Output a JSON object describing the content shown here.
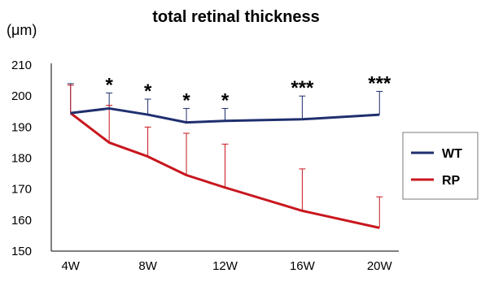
{
  "chart_data": {
    "type": "line",
    "title": "total retinal thickness",
    "ylabel": "(μm)",
    "xlabel": "",
    "ylim": [
      150,
      210
    ],
    "yticks": [
      150,
      160,
      170,
      180,
      190,
      200,
      210
    ],
    "x_tick_labels": [
      "4W",
      "8W",
      "12W",
      "16W",
      "20W"
    ],
    "x_tick_positions": [
      4,
      8,
      12,
      16,
      20
    ],
    "x": [
      4,
      6,
      8,
      10,
      12,
      16,
      20
    ],
    "grid": false,
    "legend_position": "right",
    "series": [
      {
        "name": "WT",
        "color": "#1f2f6e",
        "values": [
          194.5,
          196,
          194,
          191.5,
          192,
          192.5,
          194
        ],
        "error_upper": [
          9.5,
          5,
          5,
          4.5,
          4,
          7.5,
          7.5
        ]
      },
      {
        "name": "RP",
        "color": "#c8171e",
        "values": [
          194.5,
          185,
          180.5,
          174.5,
          170.5,
          163,
          157.5
        ],
        "error_upper": [
          9,
          12,
          9.5,
          13.5,
          14,
          13.5,
          10
        ]
      }
    ],
    "annotations": [
      {
        "x": 6,
        "text": "*"
      },
      {
        "x": 8,
        "text": "*"
      },
      {
        "x": 10,
        "text": "*"
      },
      {
        "x": 12,
        "text": "*"
      },
      {
        "x": 16,
        "text": "***"
      },
      {
        "x": 20,
        "text": "***"
      }
    ]
  }
}
